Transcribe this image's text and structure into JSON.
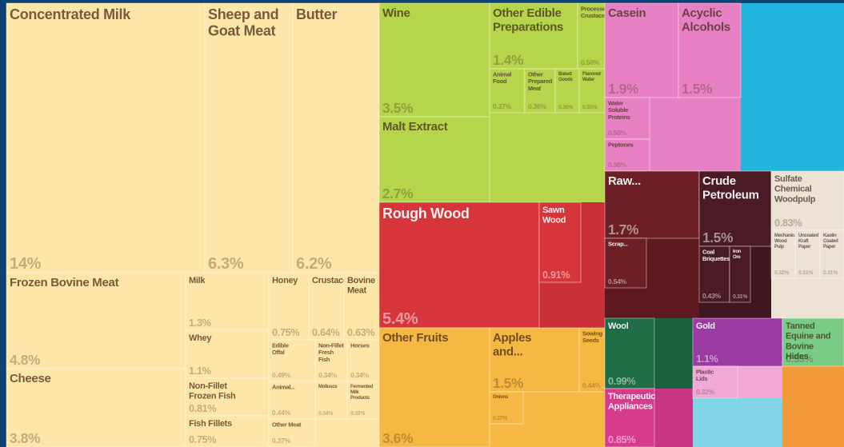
{
  "chart_data": {
    "type": "treemap",
    "categories": [
      "Concentrated Milk",
      "Sheep and Goat Meat",
      "Butter",
      "Frozen Bovine Meat",
      "Cheese",
      "Milk",
      "Whey",
      "Non-Fillet Frozen Fish",
      "Fish Fillets",
      "Honey",
      "Crustaceans",
      "Bovine Meat",
      "Edible Offal",
      "Non-Fillet Fresh Fish",
      "Horses",
      "Animal...",
      "Molluscs",
      "Fermented Milk Products",
      "Other Meat",
      "Wine",
      "Malt Extract",
      "Other Edible Preparations",
      "Processed Crustaceans",
      "Animal Food",
      "Other Prepared Meat",
      "Baked Goods",
      "Flavored Water",
      "Rough Wood",
      "Sawn Wood",
      "Other Fruits",
      "Apples and...",
      "Sowing Seeds",
      "Onions",
      "Casein",
      "Acyclic Alcohols",
      "Water Soluble Proteins",
      "Peptones",
      "Raw...",
      "Scrap...",
      "Crude Petroleum",
      "Coal Briquettes",
      "Iron Ore",
      "Sulfate Chemical Woodpulp",
      "Mechanical Wood Pulp",
      "Uncoated Kraft Paper",
      "Kaolin Coated Paper",
      "Wool",
      "Therapeutic Appliances",
      "Gold",
      "Tanned Equine and Bovine Hides",
      "Plastic Lids"
    ],
    "values": [
      14,
      6.3,
      6.2,
      4.8,
      3.8,
      1.3,
      1.1,
      0.81,
      0.75,
      0.75,
      0.64,
      0.63,
      0.49,
      0.34,
      0.34,
      0.44,
      0.34,
      0.32,
      0.37,
      3.5,
      2.7,
      1.4,
      0.5,
      0.37,
      0.36,
      0.36,
      0.3,
      5.4,
      0.91,
      3.6,
      1.5,
      0.44,
      0.27,
      1.9,
      1.5,
      0.5,
      0.38,
      1.7,
      0.54,
      1.5,
      0.43,
      0.31,
      0.83,
      0.32,
      0.31,
      0.31,
      0.99,
      0.85,
      1.1,
      0.55,
      0.32
    ],
    "value_labels": [
      "14%",
      "6.3%",
      "6.2%",
      "4.8%",
      "3.8%",
      "1.3%",
      "1.1%",
      "0.81%",
      "0.75%",
      "0.75%",
      "0.64%",
      "0.63%",
      "0.49%",
      "0.34%",
      "0.34%",
      "0.44%",
      "0.34%",
      "0.32%",
      "0.37%",
      "3.5%",
      "2.7%",
      "1.4%",
      "0.50%",
      "0.37%",
      "0.36%",
      "0.36%",
      "0.30%",
      "5.4%",
      "0.91%",
      "3.6%",
      "1.5%",
      "0.44%",
      "0.27%",
      "1.9%",
      "1.5%",
      "0.50%",
      "0.38%",
      "1.7%",
      "0.54%",
      "1.5%",
      "0.43%",
      "0.31%",
      "0.83%",
      "0.32%",
      "0.31%",
      "0.31%",
      "0.99%",
      "0.85%",
      "1.1%",
      "0.55%",
      "0.32%"
    ],
    "colors": [
      "#fde6a8",
      "#fde6a8",
      "#fde6a8",
      "#fde6a8",
      "#fde6a8",
      "#fde6a8",
      "#fde6a8",
      "#fde6a8",
      "#fde6a8",
      "#fde6a8",
      "#fde6a8",
      "#fde6a8",
      "#fde6a8",
      "#fde6a8",
      "#fde6a8",
      "#fde6a8",
      "#fde6a8",
      "#fde6a8",
      "#fde6a8",
      "#b6d44c",
      "#b6d44c",
      "#b6d44c",
      "#b6d44c",
      "#b6d44c",
      "#b6d44c",
      "#b6d44c",
      "#b6d44c",
      "#d7353c",
      "#d7353c",
      "#f6b843",
      "#f6b843",
      "#f6b843",
      "#f6b843",
      "#e881c4",
      "#e881c4",
      "#e881c4",
      "#e881c4",
      "#6c1f24",
      "#6c1f24",
      "#4a1b25",
      "#4a1b25",
      "#4a1b25",
      "#ece2d6",
      "#ece2d6",
      "#ece2d6",
      "#ece2d6",
      "#1e6d46",
      "#d63c8e",
      "#9a3aa2",
      "#7acb86",
      "#f0a8d4"
    ]
  }
}
